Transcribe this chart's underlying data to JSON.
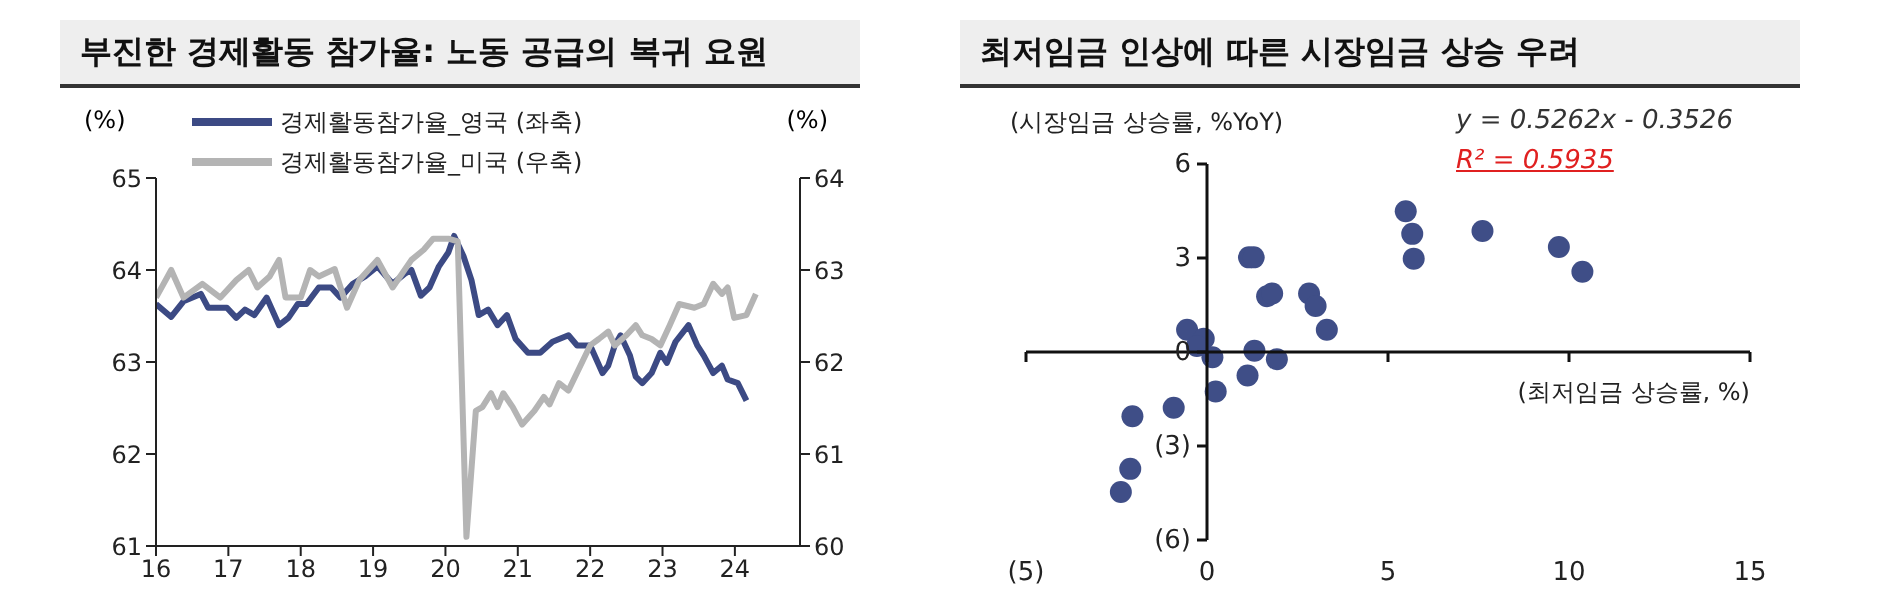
{
  "chart_data": [
    {
      "type": "line",
      "title": "부진한 경제활동 참가율: 노동 공급의 복귀 요원",
      "ylabel": "(%)",
      "y2label": "(%)",
      "legend": "top left",
      "line_style": "solid",
      "marker": "none",
      "xlim": [
        2016,
        2024.9
      ],
      "xticks": [
        {
          "value": 2016,
          "label": "16"
        },
        {
          "value": 2017,
          "label": "17"
        },
        {
          "value": 2018,
          "label": "18"
        },
        {
          "value": 2019,
          "label": "19"
        },
        {
          "value": 2020,
          "label": "20"
        },
        {
          "value": 2021,
          "label": "21"
        },
        {
          "value": 2022,
          "label": "22"
        },
        {
          "value": 2023,
          "label": "23"
        },
        {
          "value": 2024,
          "label": "24"
        }
      ],
      "ylim": [
        61,
        65
      ],
      "yticks": [
        61,
        62,
        63,
        64,
        65
      ],
      "y2lim": [
        60,
        64
      ],
      "y2ticks": [
        60,
        61,
        62,
        63,
        64
      ],
      "series": [
        {
          "name": "경제활동참가율_영국 (좌축)",
          "color": "#3c4a84",
          "x": [
            2016.0,
            2016.21,
            2016.38,
            2016.62,
            2016.72,
            2016.98,
            2017.11,
            2017.23,
            2017.36,
            2017.53,
            2017.7,
            2017.83,
            2017.96,
            2018.08,
            2018.25,
            2018.42,
            2018.55,
            2018.72,
            2018.89,
            2019.06,
            2019.27,
            2019.44,
            2019.53,
            2019.66,
            2019.78,
            2019.91,
            2020.04,
            2020.12,
            2020.25,
            2020.36,
            2020.46,
            2020.59,
            2020.72,
            2020.85,
            2020.97,
            2021.14,
            2021.31,
            2021.48,
            2021.7,
            2021.82,
            2022.0,
            2022.17,
            2022.25,
            2022.34,
            2022.42,
            2022.55,
            2022.63,
            2022.72,
            2022.85,
            2022.97,
            2023.06,
            2023.18,
            2023.36,
            2023.48,
            2023.57,
            2023.7,
            2023.82,
            2023.9,
            2024.04,
            2024.16
          ],
          "values": [
            63.63,
            63.49,
            63.66,
            63.74,
            63.59,
            63.59,
            63.48,
            63.57,
            63.51,
            63.7,
            63.4,
            63.48,
            63.63,
            63.63,
            63.81,
            63.81,
            63.7,
            63.85,
            63.93,
            64.04,
            63.85,
            63.96,
            64.0,
            63.72,
            63.81,
            64.04,
            64.19,
            64.37,
            64.15,
            63.89,
            63.51,
            63.57,
            63.4,
            63.51,
            63.25,
            63.1,
            63.1,
            63.22,
            63.29,
            63.18,
            63.18,
            62.88,
            62.96,
            63.18,
            63.29,
            63.07,
            62.84,
            62.77,
            62.88,
            63.1,
            62.99,
            63.22,
            63.4,
            63.18,
            63.07,
            62.88,
            62.96,
            62.81,
            62.77,
            62.58
          ]
        },
        {
          "name": "경제활동참가율_미국 (우축)",
          "color": "#b4b4b4",
          "axis": "y2",
          "x": [
            2016.0,
            2016.21,
            2016.38,
            2016.64,
            2016.89,
            2017.11,
            2017.28,
            2017.4,
            2017.57,
            2017.7,
            2017.79,
            2018.0,
            2018.13,
            2018.25,
            2018.47,
            2018.64,
            2018.81,
            2019.06,
            2019.27,
            2019.53,
            2019.7,
            2019.83,
            2020.04,
            2020.17,
            2020.29,
            2020.42,
            2020.51,
            2020.63,
            2020.72,
            2020.8,
            2020.93,
            2021.06,
            2021.23,
            2021.36,
            2021.44,
            2021.57,
            2021.7,
            2022.0,
            2022.12,
            2022.25,
            2022.34,
            2022.5,
            2022.63,
            2022.72,
            2022.85,
            2022.97,
            2023.1,
            2023.23,
            2023.44,
            2023.57,
            2023.7,
            2023.82,
            2023.9,
            2023.99,
            2024.16,
            2024.29
          ],
          "values": [
            62.7,
            63.0,
            62.7,
            62.85,
            62.7,
            62.89,
            63.0,
            62.81,
            62.93,
            63.11,
            62.7,
            62.7,
            63.0,
            62.93,
            63.01,
            62.59,
            62.89,
            63.11,
            62.81,
            63.11,
            63.22,
            63.34,
            63.34,
            63.31,
            60.1,
            61.47,
            61.51,
            61.66,
            61.51,
            61.66,
            61.51,
            61.32,
            61.47,
            61.62,
            61.54,
            61.77,
            61.69,
            62.18,
            62.25,
            62.33,
            62.18,
            62.29,
            62.4,
            62.29,
            62.25,
            62.18,
            62.4,
            62.63,
            62.59,
            62.63,
            62.85,
            62.74,
            62.81,
            62.48,
            62.51,
            62.74
          ]
        }
      ]
    },
    {
      "type": "scatter",
      "title": "최저임금 인상에 따른 시장임금 상승 우려",
      "xlabel": "(최저임금 상승률, %)",
      "ylabel": "(시장임금 상승률, %YoY)",
      "marker": "circle",
      "annotations": [
        "y = 0.5262x - 0.3526",
        "R² = 0.5935"
      ],
      "xlim": [
        -5,
        15
      ],
      "xticks": [
        {
          "value": -5,
          "label": "(5)"
        },
        0,
        5,
        10,
        15
      ],
      "ylim": [
        -6,
        6
      ],
      "yticks": [
        {
          "value": -6,
          "label": "(6)"
        },
        {
          "value": -3,
          "label": "(3)"
        },
        0,
        3,
        6
      ],
      "series": [
        {
          "color": "#3f4e87",
          "x": [
            -0.55,
            -0.09,
            -0.28,
            0.15,
            0.24,
            1.16,
            1.29,
            1.66,
            1.8,
            1.31,
            1.12,
            1.93,
            2.82,
            3.0,
            3.31,
            5.49,
            5.67,
            5.71,
            7.61,
            9.72,
            10.37,
            -0.92,
            -2.06,
            -2.12,
            -2.38
          ],
          "values": [
            0.71,
            0.42,
            0.19,
            -0.17,
            -1.26,
            3.02,
            3.02,
            1.78,
            1.87,
            0.04,
            -0.75,
            -0.23,
            1.87,
            1.47,
            0.71,
            4.49,
            3.77,
            2.98,
            3.86,
            3.35,
            2.56,
            -1.78,
            -2.05,
            -3.73,
            -4.47
          ]
        }
      ]
    }
  ]
}
